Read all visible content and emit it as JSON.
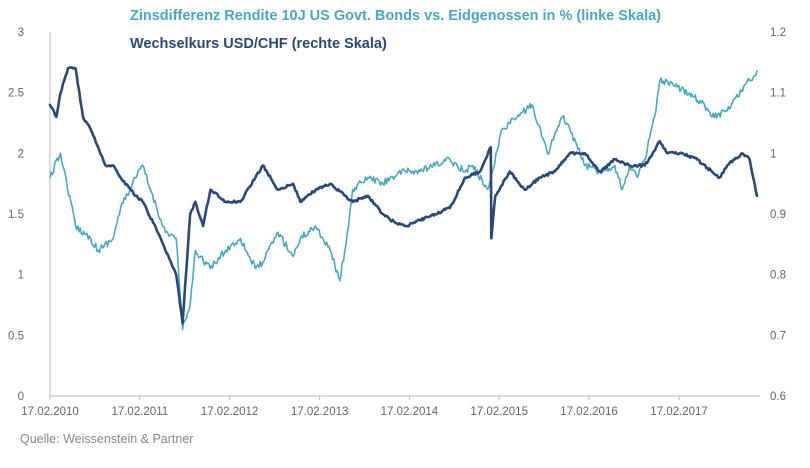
{
  "chart_data": {
    "type": "line",
    "series": [
      {
        "name": "Zinsdifferenz Rendite 10J US Govt. Bonds vs. Eidgenossen in % (linke Skala)",
        "axis": "left",
        "color": "#4aa8be",
        "x": [
          "17.02.2010",
          "01.04.2010",
          "01.06.2010",
          "01.08.2010",
          "01.09.2010",
          "01.11.2010",
          "01.12.2010",
          "01.02.2011",
          "01.03.2011",
          "01.04.2011",
          "01.06.2011",
          "15.07.2011",
          "10.08.2011",
          "10.09.2011",
          "01.10.2011",
          "01.12.2011",
          "01.02.2012",
          "01.04.2012",
          "01.06.2012",
          "01.07.2012",
          "01.09.2012",
          "01.11.2012",
          "01.12.2012",
          "01.02.2013",
          "01.04.2013",
          "10.05.2013",
          "15.06.2013",
          "01.07.2013",
          "01.09.2013",
          "01.11.2013",
          "01.12.2013",
          "01.02.2014",
          "01.04.2014",
          "01.06.2014",
          "01.08.2014",
          "01.10.2014",
          "01.11.2014",
          "01.01.2015",
          "20.01.2015",
          "01.03.2015",
          "01.05.2015",
          "01.07.2015",
          "01.09.2015",
          "01.11.2015",
          "01.12.2015",
          "01.02.2016",
          "01.04.2016",
          "01.06.2016",
          "01.07.2016",
          "01.08.2016",
          "01.09.2016",
          "01.10.2016",
          "15.11.2016",
          "01.12.2016",
          "01.02.2017",
          "01.04.2017",
          "01.06.2017",
          "01.07.2017",
          "01.09.2017",
          "01.10.2017",
          "01.12.2017",
          "31.12.2017"
        ],
        "values": [
          1.8,
          2.0,
          1.4,
          1.3,
          1.2,
          1.3,
          1.55,
          1.8,
          1.9,
          1.7,
          1.35,
          1.3,
          0.55,
          0.75,
          1.2,
          1.05,
          1.2,
          1.3,
          1.05,
          1.1,
          1.35,
          1.15,
          1.3,
          1.4,
          1.2,
          0.95,
          1.4,
          1.7,
          1.8,
          1.75,
          1.8,
          1.85,
          1.85,
          1.9,
          1.95,
          1.85,
          1.9,
          1.7,
          1.85,
          2.2,
          2.3,
          2.4,
          2.0,
          2.3,
          2.2,
          1.9,
          1.85,
          1.9,
          1.7,
          1.9,
          1.8,
          1.95,
          2.35,
          2.6,
          2.55,
          2.5,
          2.4,
          2.3,
          2.35,
          2.45,
          2.6,
          2.68
        ]
      },
      {
        "name": "Wechselkurs USD/CHF (rechte Skala)",
        "axis": "right",
        "color": "#2b4978",
        "x": [
          "17.02.2010",
          "15.03.2010",
          "01.04.2010",
          "01.05.2010",
          "01.06.2010",
          "01.07.2010",
          "01.08.2010",
          "01.09.2010",
          "01.10.2010",
          "01.11.2010",
          "01.12.2010",
          "01.02.2011",
          "01.03.2011",
          "01.05.2011",
          "01.06.2011",
          "15.07.2011",
          "10.08.2011",
          "10.09.2011",
          "01.10.2011",
          "01.11.2011",
          "01.12.2011",
          "01.02.2012",
          "01.04.2012",
          "01.06.2012",
          "01.07.2012",
          "01.09.2012",
          "01.11.2012",
          "01.12.2012",
          "01.02.2013",
          "01.04.2013",
          "01.06.2013",
          "01.07.2013",
          "01.09.2013",
          "01.11.2013",
          "01.12.2013",
          "01.02.2014",
          "01.04.2014",
          "01.06.2014",
          "01.08.2014",
          "01.10.2014",
          "01.12.2014",
          "14.01.2015",
          "16.01.2015",
          "01.02.2015",
          "01.04.2015",
          "01.06.2015",
          "01.08.2015",
          "01.10.2015",
          "01.12.2015",
          "01.02.2016",
          "01.04.2016",
          "01.06.2016",
          "01.08.2016",
          "01.10.2016",
          "01.12.2016",
          "01.01.2017",
          "01.03.2017",
          "01.05.2017",
          "01.07.2017",
          "01.08.2017",
          "01.09.2017",
          "01.10.2017",
          "01.11.2017",
          "01.12.2017",
          "31.12.2017"
        ],
        "values": [
          1.08,
          1.06,
          1.1,
          1.14,
          1.14,
          1.06,
          1.04,
          1.01,
          0.98,
          0.98,
          0.96,
          0.93,
          0.92,
          0.87,
          0.84,
          0.8,
          0.72,
          0.9,
          0.92,
          0.88,
          0.94,
          0.92,
          0.92,
          0.96,
          0.98,
          0.94,
          0.95,
          0.92,
          0.94,
          0.95,
          0.93,
          0.92,
          0.93,
          0.9,
          0.89,
          0.88,
          0.89,
          0.9,
          0.91,
          0.96,
          0.97,
          1.01,
          0.86,
          0.93,
          0.97,
          0.94,
          0.96,
          0.97,
          1.0,
          1.0,
          0.97,
          0.99,
          0.98,
          0.98,
          1.02,
          1.0,
          1.0,
          0.99,
          0.97,
          0.96,
          0.98,
          0.99,
          1.0,
          0.99,
          0.93
        ]
      }
    ],
    "xticks": [
      "17.02.2010",
      "17.02.2011",
      "17.02.2012",
      "17.02.2013",
      "17.02.2014",
      "17.02.2015",
      "17.02.2016",
      "17.02.2017"
    ],
    "ylim_left": [
      0,
      3
    ],
    "yticks_left": [
      "0",
      "0.5",
      "1",
      "1.5",
      "2",
      "2.5",
      "3"
    ],
    "ylim_right": [
      0.6,
      1.2
    ],
    "yticks_right": [
      "0.6",
      "0.7",
      "0.8",
      "0.9",
      "1",
      "1.1",
      "1.2"
    ],
    "grid": false,
    "legend_placement": "top-center"
  },
  "source": "Quelle: Weissenstein & Partner"
}
